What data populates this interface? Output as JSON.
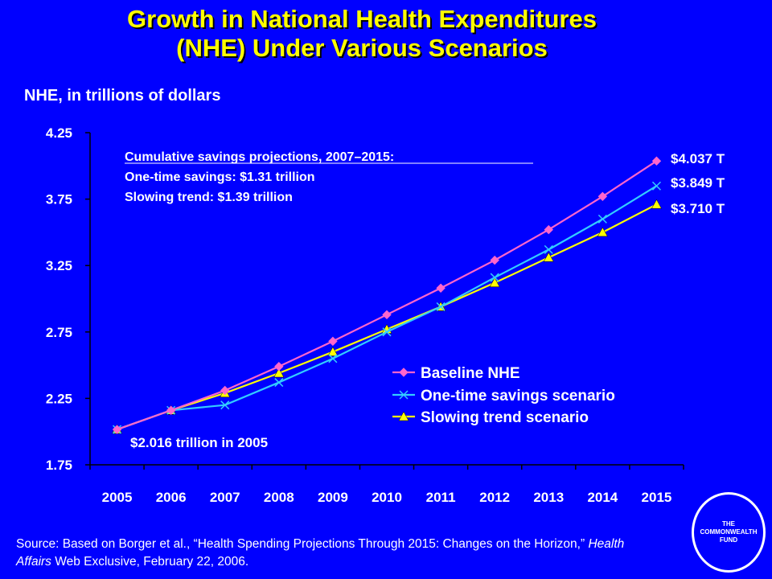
{
  "title_line1": "Growth in National Health Expenditures",
  "title_line2": "(NHE) Under Various Scenarios",
  "source": {
    "prefix": "Source: Based on Borger et al., “Health Spending Projections Through 2015: Changes on the Horizon,” ",
    "journal": "Health Affairs",
    "suffix": " Web Exclusive, February 22, 2006."
  },
  "logo": {
    "line1": "THE",
    "line2": "COMMONWEALTH",
    "line3": "FUND"
  },
  "colors": {
    "background": "#0000ff",
    "title": "#ffff00",
    "text": "#ffffff",
    "baseline": "#ff66cc",
    "one_time": "#33ccff",
    "slowing": "#ffff00"
  },
  "chart_data": {
    "type": "line",
    "title": "",
    "xlabel": "",
    "ylabel": "NHE, in trillions of dollars",
    "categories": [
      "2005",
      "2006",
      "2007",
      "2008",
      "2009",
      "2010",
      "2011",
      "2012",
      "2013",
      "2014",
      "2015"
    ],
    "ylim": [
      1.75,
      4.25
    ],
    "yticks": [
      "4.25",
      "3.75",
      "3.25",
      "2.75",
      "2.25",
      "1.75"
    ],
    "grid": false,
    "legend_position": "lower-right",
    "series": [
      {
        "name": "Baseline NHE",
        "marker": "diamond",
        "values": [
          2.016,
          2.16,
          2.31,
          2.49,
          2.68,
          2.88,
          3.08,
          3.29,
          3.52,
          3.77,
          4.037
        ]
      },
      {
        "name": "One-time savings scenario",
        "marker": "x",
        "values": [
          2.016,
          2.16,
          2.2,
          2.37,
          2.55,
          2.75,
          2.94,
          3.16,
          3.37,
          3.6,
          3.849
        ]
      },
      {
        "name": "Slowing trend scenario",
        "marker": "triangle",
        "values": [
          2.016,
          2.16,
          2.29,
          2.44,
          2.6,
          2.77,
          2.94,
          3.12,
          3.31,
          3.5,
          3.71
        ]
      }
    ],
    "annotations": {
      "box_heading": "Cumulative savings projections, 2007–2015:",
      "box_line1": "One-time savings: $1.31 trillion",
      "box_line2": "Slowing trend: $1.39 trillion",
      "start_label": "$2.016 trillion in 2005",
      "end_labels": [
        "$4.037 T",
        "$3.849 T",
        "$3.710 T"
      ]
    }
  }
}
